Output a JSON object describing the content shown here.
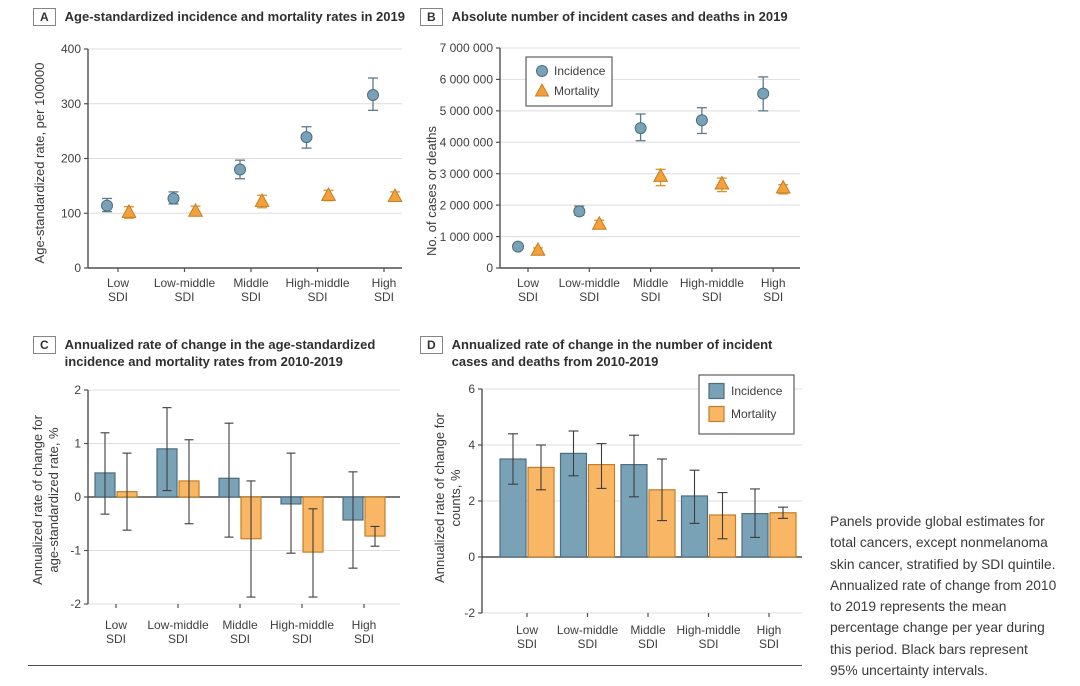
{
  "caption": "Panels provide global estimates for\ntotal cancers, except nonmelanoma\nskin cancer, stratified by SDI quintile.\nAnnualized rate of change from 2010\nto 2019 represents the mean\npercentage change per year during\nthis period. Black bars represent\n95% uncertainty intervals.",
  "colors": {
    "incidence": "#78A2B8",
    "incidence_edge": "#4E6E7E",
    "incidence_err": "#5F7A87",
    "incidence_bar": "#79A2B7",
    "mortality": "#F5A03A",
    "mortality_edge": "#C07F26",
    "mortality_err": "#E2912C",
    "mortality_bar": "#F9B766",
    "bar_error": "#3C3C3C",
    "axis": "#4F4F4F",
    "grid": "#DEDEDE",
    "text": "#3E3E3E"
  },
  "chart_data": [
    {
      "type": "scatter",
      "panel_label": "A",
      "title": "Age-standardized incidence and mortality rates in 2019",
      "ylabel": "Age-standardized rate, per 100000",
      "ylim": [
        0,
        400
      ],
      "yticks": [
        0,
        100,
        200,
        300,
        400
      ],
      "ytick_labels": [
        "0",
        "100",
        "200",
        "300",
        "400"
      ],
      "categories": [
        "Low\nSDI",
        "Low-middle\nSDI",
        "Middle\nSDI",
        "High-middle\nSDI",
        "High\nSDI"
      ],
      "series": [
        {
          "name": "Incidence",
          "marker": "circle",
          "values": [
            114,
            127,
            180,
            239,
            316
          ],
          "ci_lo": [
            103,
            117,
            163,
            219,
            288
          ],
          "ci_hi": [
            127,
            139,
            197,
            258,
            347
          ]
        },
        {
          "name": "Mortality",
          "marker": "triangle",
          "values": [
            102,
            104,
            122,
            133,
            131
          ],
          "ci_lo": [
            91,
            96,
            110,
            123,
            124
          ],
          "ci_hi": [
            112,
            113,
            133,
            142,
            139
          ]
        }
      ]
    },
    {
      "type": "scatter",
      "panel_label": "B",
      "title": "Absolute number of incident cases and deaths in 2019",
      "ylabel": "No. of cases or deaths",
      "ylim": [
        0,
        7000000
      ],
      "yticks": [
        0,
        1000000,
        2000000,
        3000000,
        4000000,
        5000000,
        6000000,
        7000000
      ],
      "ytick_labels": [
        "0",
        "1 000 000",
        "2 000 000",
        "3 000 000",
        "4 000 000",
        "5 000 000",
        "6 000 000",
        "7 000 000"
      ],
      "categories": [
        "Low\nSDI",
        "Low-middle\nSDI",
        "Middle\nSDI",
        "High-middle\nSDI",
        "High\nSDI"
      ],
      "legend_position": "top-left",
      "series": [
        {
          "name": "Incidence",
          "marker": "circle",
          "values": [
            680000,
            1800000,
            4450000,
            4700000,
            5550000
          ],
          "ci_lo": [
            620000,
            1680000,
            4050000,
            4280000,
            5000000
          ],
          "ci_hi": [
            760000,
            1970000,
            4900000,
            5100000,
            6080000
          ]
        },
        {
          "name": "Mortality",
          "marker": "triangle",
          "values": [
            570000,
            1400000,
            2920000,
            2680000,
            2550000
          ],
          "ci_lo": [
            500000,
            1280000,
            2620000,
            2430000,
            2360000
          ],
          "ci_hi": [
            640000,
            1520000,
            3140000,
            2860000,
            2650000
          ]
        }
      ]
    },
    {
      "type": "bar",
      "panel_label": "C",
      "title": "Annualized rate of change in the age-standardized\nincidence and mortality rates from 2010-2019",
      "ylabel": "Annualized rate of change for\nage-standardized rate, %",
      "ylim": [
        -2,
        2
      ],
      "yticks": [
        -2,
        -1,
        0,
        1,
        2
      ],
      "ytick_labels": [
        "-2",
        "-1",
        "0",
        "1",
        "2"
      ],
      "categories": [
        "Low\nSDI",
        "Low-middle\nSDI",
        "Middle\nSDI",
        "High-middle\nSDI",
        "High\nSDI"
      ],
      "series": [
        {
          "name": "Incidence",
          "values": [
            0.45,
            0.9,
            0.35,
            -0.13,
            -0.43
          ],
          "ci_lo": [
            -0.32,
            0.12,
            -0.75,
            -1.05,
            -1.33
          ],
          "ci_hi": [
            1.2,
            1.67,
            1.38,
            0.82,
            0.47
          ]
        },
        {
          "name": "Mortality",
          "values": [
            0.1,
            0.3,
            -0.78,
            -1.03,
            -0.73
          ],
          "ci_lo": [
            -0.62,
            -0.5,
            -1.87,
            -1.87,
            -0.92
          ],
          "ci_hi": [
            0.82,
            1.07,
            0.3,
            -0.22,
            -0.55
          ]
        }
      ]
    },
    {
      "type": "bar",
      "panel_label": "D",
      "title": "Annualized rate of change in the number of incident\ncases and deaths from 2010-2019",
      "ylabel": "Annualized rate of change for\ncounts, %",
      "ylim": [
        -2,
        6
      ],
      "yticks": [
        -2,
        0,
        2,
        4,
        6
      ],
      "ytick_labels": [
        "-2",
        "0",
        "2",
        "4",
        "6"
      ],
      "categories": [
        "Low\nSDI",
        "Low-middle\nSDI",
        "Middle\nSDI",
        "High-middle\nSDI",
        "High\nSDI"
      ],
      "legend_position": "top-right",
      "series": [
        {
          "name": "Incidence",
          "values": [
            3.5,
            3.7,
            3.3,
            2.18,
            1.55
          ],
          "ci_lo": [
            2.6,
            2.9,
            2.15,
            1.2,
            0.7
          ],
          "ci_hi": [
            4.4,
            4.5,
            4.35,
            3.1,
            2.43
          ]
        },
        {
          "name": "Mortality",
          "values": [
            3.2,
            3.3,
            2.4,
            1.5,
            1.58
          ],
          "ci_lo": [
            2.4,
            2.45,
            1.3,
            0.65,
            1.38
          ],
          "ci_hi": [
            4.0,
            4.05,
            3.5,
            2.3,
            1.78
          ]
        }
      ]
    }
  ]
}
